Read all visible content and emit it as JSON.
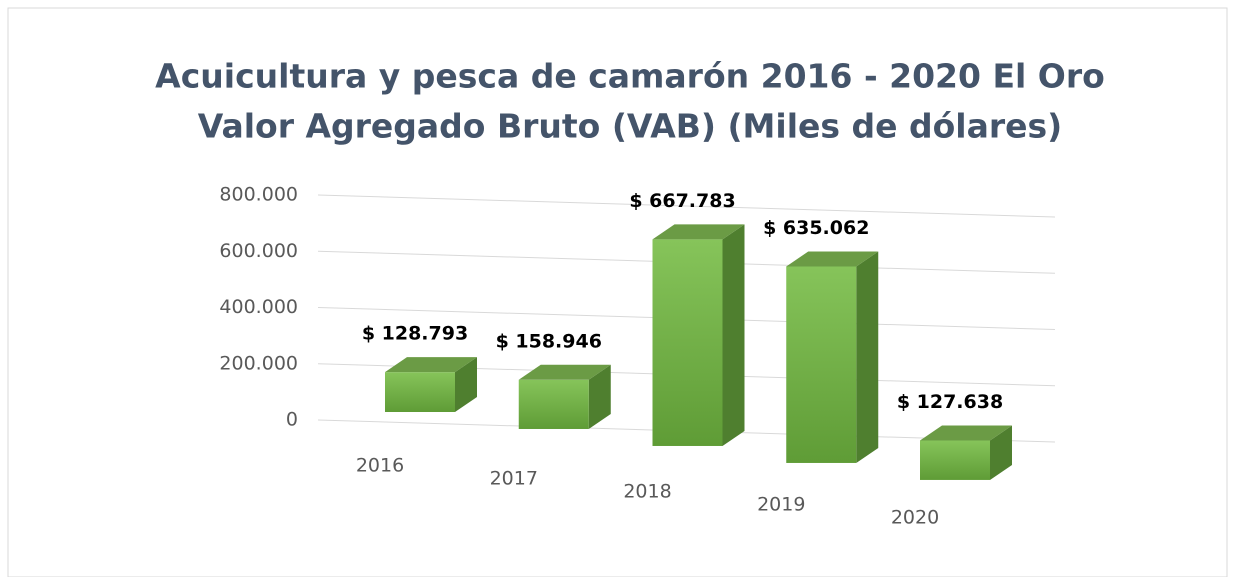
{
  "chart_data": {
    "type": "bar3d",
    "title": [
      "Acuicultura y pesca de camarón 2016 - 2020  El Oro",
      "Valor Agregado Bruto (VAB) (Miles de dólares)"
    ],
    "categories": [
      "2016",
      "2017",
      "2018",
      "2019",
      "2020"
    ],
    "values": [
      128793,
      158946,
      667783,
      635062,
      127638
    ],
    "value_labels": [
      "$ 128.793",
      "$ 158.946",
      "$ 667.783",
      "$ 635.062",
      "$ 127.638"
    ],
    "color": "#76b84a",
    "ylim": [
      0,
      800000
    ],
    "yticks": [
      0,
      {
        "value": 200000,
        "label": "200.000"
      },
      {
        "value": 400000,
        "label": "400.000"
      },
      {
        "value": 600000,
        "label": "600.000"
      },
      {
        "value": 800000,
        "label": "800.000"
      }
    ],
    "grid": true
  }
}
